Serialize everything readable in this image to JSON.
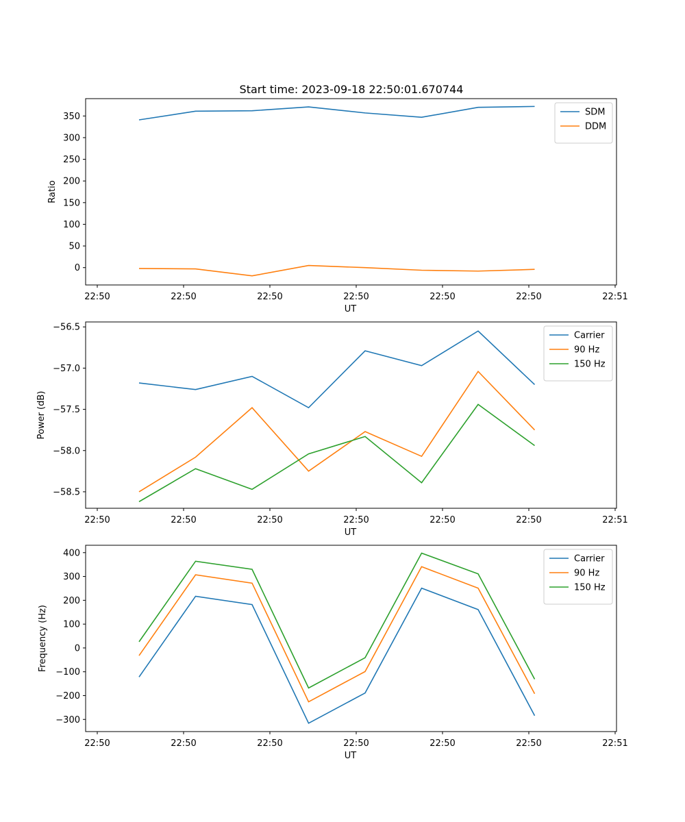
{
  "title": "Start time: 2023-09-18 22:50:01.670744",
  "colors": {
    "blue": "#1f77b4",
    "orange": "#ff7f0e",
    "green": "#2ca02c"
  },
  "chart_data": [
    {
      "type": "line",
      "xlabel": "UT",
      "ylabel": "Ratio",
      "x_ticks": [
        "22:50",
        "22:50",
        "22:50",
        "22:50",
        "22:50",
        "22:50",
        "22:51"
      ],
      "y_ticks": [
        "0",
        "50",
        "100",
        "150",
        "200",
        "250",
        "300",
        "350"
      ],
      "ylim": [
        -40,
        390
      ],
      "legend_position": "upper right",
      "series": [
        {
          "name": "SDM",
          "color": "#1f77b4",
          "values": [
            341,
            361,
            362,
            371,
            357,
            347,
            370,
            372
          ]
        },
        {
          "name": "DDM",
          "color": "#ff7f0e",
          "values": [
            -2,
            -3,
            -19,
            5,
            0,
            -6,
            -8,
            -4
          ]
        }
      ]
    },
    {
      "type": "line",
      "xlabel": "UT",
      "ylabel": "Power (dB)",
      "x_ticks": [
        "22:50",
        "22:50",
        "22:50",
        "22:50",
        "22:50",
        "22:50",
        "22:51"
      ],
      "y_ticks": [
        "−58.5",
        "−58.0",
        "−57.5",
        "−57.0",
        "−56.5"
      ],
      "ylim": [
        -58.7,
        -56.44
      ],
      "legend_position": "upper right",
      "series": [
        {
          "name": "Carrier",
          "color": "#1f77b4",
          "values": [
            -57.18,
            -57.26,
            -57.1,
            -57.48,
            -56.79,
            -56.97,
            -56.55,
            -57.2
          ]
        },
        {
          "name": "90 Hz",
          "color": "#ff7f0e",
          "values": [
            -58.5,
            -58.08,
            -57.48,
            -58.25,
            -57.77,
            -58.07,
            -57.04,
            -57.75
          ]
        },
        {
          "name": "150 Hz",
          "color": "#2ca02c",
          "values": [
            -58.62,
            -58.22,
            -58.47,
            -58.04,
            -57.83,
            -58.39,
            -57.44,
            -57.94
          ]
        }
      ]
    },
    {
      "type": "line",
      "xlabel": "UT",
      "ylabel": "Frequency (Hz)",
      "x_ticks": [
        "22:50",
        "22:50",
        "22:50",
        "22:50",
        "22:50",
        "22:50",
        "22:51"
      ],
      "y_ticks": [
        "−300",
        "−200",
        "−100",
        "0",
        "100",
        "200",
        "300",
        "400"
      ],
      "ylim": [
        -351,
        431
      ],
      "legend_position": "upper right",
      "series": [
        {
          "name": "Carrier",
          "color": "#1f77b4",
          "values": [
            -122,
            217,
            182,
            -316,
            -189,
            251,
            161,
            -284
          ]
        },
        {
          "name": "90 Hz",
          "color": "#ff7f0e",
          "values": [
            -32,
            307,
            272,
            -226,
            -99,
            341,
            251,
            -192
          ]
        },
        {
          "name": "150 Hz",
          "color": "#2ca02c",
          "values": [
            26,
            364,
            330,
            -168,
            -41,
            398,
            311,
            -131
          ]
        }
      ]
    }
  ]
}
